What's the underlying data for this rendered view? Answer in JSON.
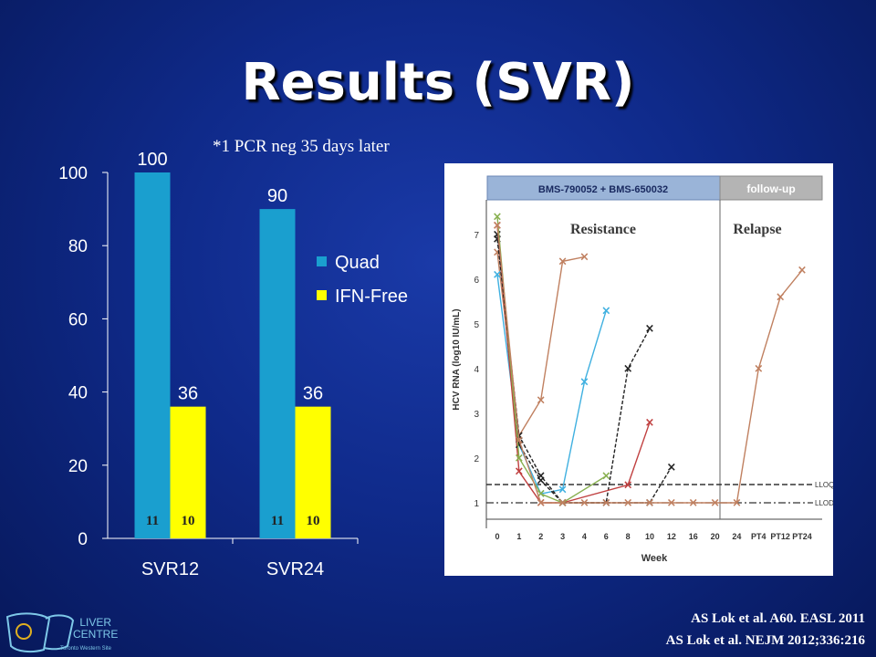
{
  "slide": {
    "title": "Results (SVR)",
    "note": "*1 PCR neg 35 days later",
    "citations": [
      "AS Lok et al. A60. EASL 2011",
      "AS Lok et al. NEJM 2012;336:216"
    ],
    "logo": {
      "line1": "LIVER",
      "line2": "CENTRE",
      "line3": "Toronto Western Site"
    }
  },
  "colors": {
    "quad": "#1a9fcf",
    "ifn_free": "#ffff00",
    "text": "#ffffff",
    "background": "#0f2a8a"
  },
  "chart_data": [
    {
      "type": "bar",
      "categories": [
        "SVR12",
        "SVR24"
      ],
      "series": [
        {
          "name": "Quad",
          "values": [
            100,
            90
          ],
          "n": [
            11,
            11
          ]
        },
        {
          "name": "IFN-Free",
          "values": [
            36,
            36
          ],
          "n": [
            10,
            10
          ]
        }
      ],
      "ylim": [
        0,
        100
      ],
      "yticks": [
        0,
        20,
        40,
        60,
        80,
        100
      ],
      "legend": "right",
      "grid": false
    },
    {
      "type": "line",
      "title": "",
      "phase_labels": [
        "BMS-790052 + BMS-650032",
        "follow-up"
      ],
      "annotations": [
        "Resistance",
        "Relapse"
      ],
      "ylabel": "HCV RNA (log10 IU/mL)",
      "xlabel": "Week",
      "x_ticks": [
        "0",
        "1",
        "2",
        "3",
        "4",
        "6",
        "8",
        "10",
        "12",
        "16",
        "20",
        "24",
        "PT4",
        "PT12",
        "PT24"
      ],
      "y_ticks": [
        "1",
        "2",
        "3",
        "4",
        "5",
        "6",
        "7"
      ],
      "reference_lines": [
        "LLOQ",
        "LLOD"
      ],
      "series": [
        {
          "color": "#c08060",
          "x": [
            "0",
            "1",
            "2",
            "3",
            "4"
          ],
          "values": [
            6.6,
            2.5,
            3.3,
            6.4,
            6.5
          ]
        },
        {
          "color": "#3fb0e0",
          "x": [
            "0",
            "1",
            "2",
            "3",
            "4",
            "6"
          ],
          "values": [
            6.1,
            2.3,
            1.2,
            1.3,
            3.7,
            5.3
          ]
        },
        {
          "color": "#222222",
          "x": [
            "0",
            "1",
            "2",
            "3",
            "6",
            "8",
            "10"
          ],
          "values": [
            6.9,
            2.5,
            1.6,
            1.0,
            1.0,
            4.0,
            4.9
          ]
        },
        {
          "color": "#c04040",
          "x": [
            "0",
            "1",
            "2",
            "3",
            "8",
            "10"
          ],
          "values": [
            7.2,
            1.7,
            1.0,
            1.0,
            1.4,
            2.8
          ]
        },
        {
          "color": "#222222",
          "x": [
            "0",
            "1",
            "2",
            "3",
            "10",
            "12"
          ],
          "values": [
            7.0,
            2.3,
            1.5,
            1.0,
            1.0,
            1.8
          ]
        },
        {
          "color": "#88b050",
          "x": [
            "0",
            "1",
            "2",
            "3",
            "6"
          ],
          "values": [
            7.4,
            2.0,
            1.2,
            1.0,
            1.6
          ]
        },
        {
          "color": "#c08060",
          "x": [
            "0",
            "1",
            "2",
            "3",
            "4",
            "6",
            "8",
            "10",
            "12",
            "16",
            "20",
            "24",
            "PT4",
            "PT12",
            "PT24"
          ],
          "values": [
            7.2,
            2.4,
            1.0,
            1.0,
            1.0,
            1.0,
            1.0,
            1.0,
            1.0,
            1.0,
            1.0,
            1.0,
            4.0,
            5.6,
            6.2
          ]
        }
      ]
    }
  ]
}
